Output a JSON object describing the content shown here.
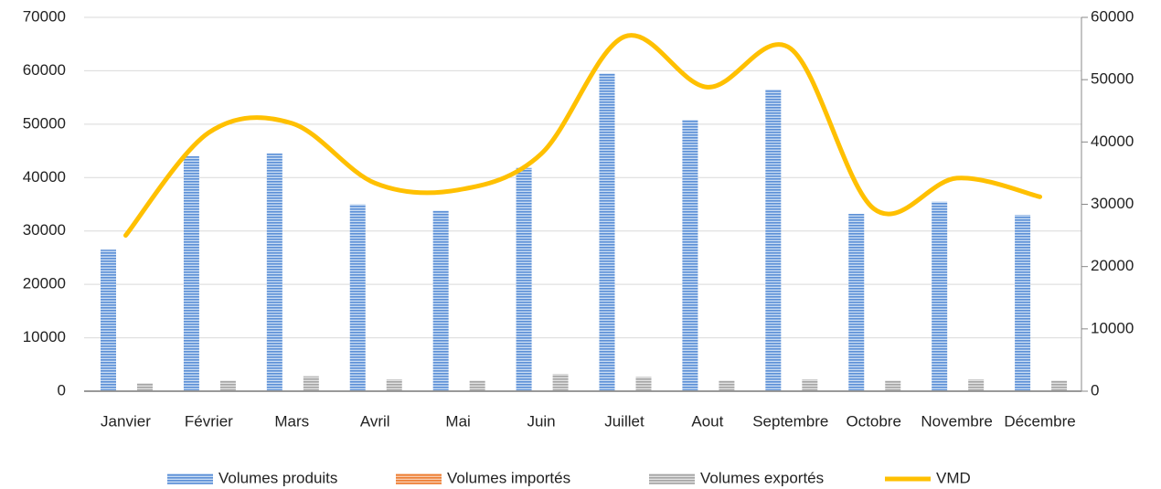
{
  "chart_data": {
    "type": "bar",
    "categories": [
      "Janvier",
      "Février",
      "Mars",
      "Avril",
      "Mai",
      "Juin",
      "Juillet",
      "Aout",
      "Septembre",
      "Octobre",
      "Novembre",
      "Décembre"
    ],
    "series": [
      {
        "name": "Volumes produits",
        "color": "#5b8fd6",
        "values": [
          26500,
          44000,
          44500,
          35000,
          33800,
          41800,
          59500,
          50800,
          56500,
          33200,
          35500,
          33000
        ]
      },
      {
        "name": "Volumes importés",
        "color": "#ed7d31",
        "values": [
          0,
          0,
          0,
          0,
          0,
          0,
          0,
          0,
          0,
          0,
          0,
          0
        ]
      },
      {
        "name": "Volumes exportés",
        "color": "#a5a5a5",
        "values": [
          1500,
          2000,
          2800,
          2200,
          2000,
          3200,
          2700,
          2000,
          2200,
          2000,
          2200,
          2000
        ]
      },
      {
        "name": "VMD",
        "color": "#ffc000",
        "type": "line",
        "axis": "y2",
        "values": [
          25000,
          41500,
          43000,
          33400,
          32300,
          38100,
          56900,
          48800,
          55000,
          29300,
          34200,
          31200
        ]
      }
    ],
    "ylim": [
      0,
      70000
    ],
    "yticks": [
      0,
      10000,
      20000,
      30000,
      40000,
      50000,
      60000,
      70000
    ],
    "y2lim": [
      0,
      60000
    ],
    "y2ticks": [
      0,
      10000,
      20000,
      30000,
      40000,
      50000,
      60000
    ],
    "grid": true,
    "legend": "bottom"
  }
}
